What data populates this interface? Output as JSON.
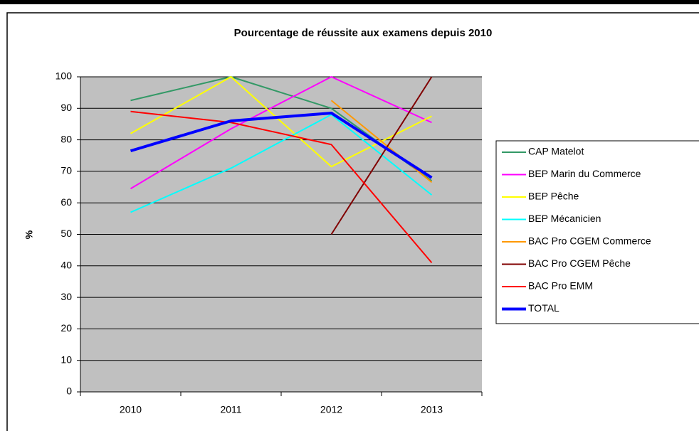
{
  "chart_data": {
    "type": "line",
    "title": "Pourcentage de réussite aux examens depuis 2010",
    "y_label": "%",
    "categories": [
      "2010",
      "2011",
      "2012",
      "2013"
    ],
    "series": [
      {
        "name": "CAP Matelot",
        "color": "#339966",
        "line_width": 2,
        "values": [
          92.5,
          100,
          90,
          67
        ]
      },
      {
        "name": "BEP Marin du Commerce",
        "color": "#ff00ff",
        "line_width": 2,
        "values": [
          64.5,
          83.5,
          100,
          85.5
        ]
      },
      {
        "name": "BEP Pêche",
        "color": "#ffff00",
        "line_width": 2,
        "values": [
          82,
          100,
          71.5,
          87.5
        ]
      },
      {
        "name": "BEP Mécanicien",
        "color": "#00ffff",
        "line_width": 2,
        "values": [
          57,
          71,
          88,
          62.5
        ]
      },
      {
        "name": "BAC Pro CGEM Commerce",
        "color": "#ff9900",
        "line_width": 2,
        "values": [
          null,
          null,
          92.5,
          66.5
        ]
      },
      {
        "name": "BAC Pro CGEM Pêche",
        "color": "#800000",
        "line_width": 2,
        "values": [
          null,
          null,
          50,
          100
        ]
      },
      {
        "name": "BAC Pro EMM",
        "color": "#ff0000",
        "line_width": 2,
        "values": [
          89,
          85.5,
          78.5,
          41
        ]
      },
      {
        "name": "TOTAL",
        "color": "#0000ff",
        "line_width": 4,
        "values": [
          76.5,
          86,
          88.5,
          68
        ]
      }
    ],
    "ylim": [
      0,
      100
    ],
    "yticks": [
      0,
      10,
      20,
      30,
      40,
      50,
      60,
      70,
      80,
      90,
      100
    ],
    "grid": true,
    "legend": "right",
    "plot_background": "#c0c0c0"
  }
}
